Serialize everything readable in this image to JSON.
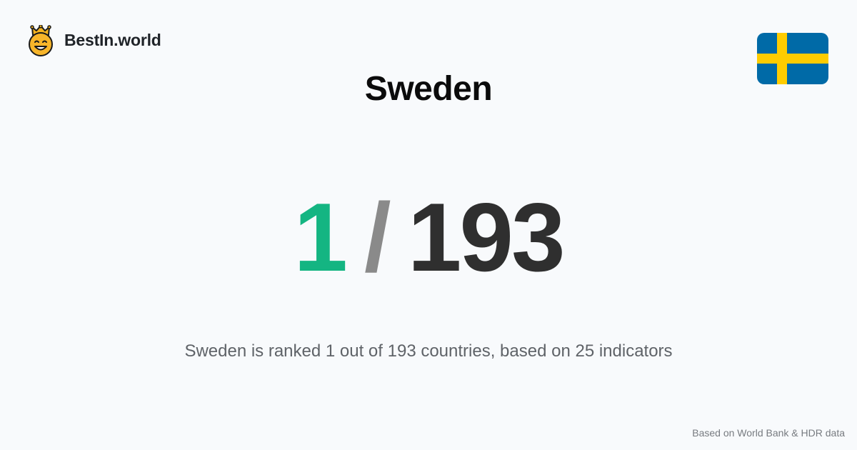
{
  "brand": {
    "name": "BestIn.world",
    "logo_icon": "crowned-smiley-icon"
  },
  "country": {
    "name": "Sweden",
    "flag_icon": "sweden-flag-icon",
    "flag_colors": {
      "blue": "#006aa7",
      "yellow": "#fecc00"
    }
  },
  "rank": {
    "value": "1",
    "separator": "/",
    "total": "193",
    "colors": {
      "value": "#14b582",
      "separator": "#8a8a8a",
      "total": "#2f2f2f"
    }
  },
  "summary": "Sweden is ranked 1 out of 193 countries, based on 25 indicators",
  "source_note": "Based on World Bank & HDR data"
}
